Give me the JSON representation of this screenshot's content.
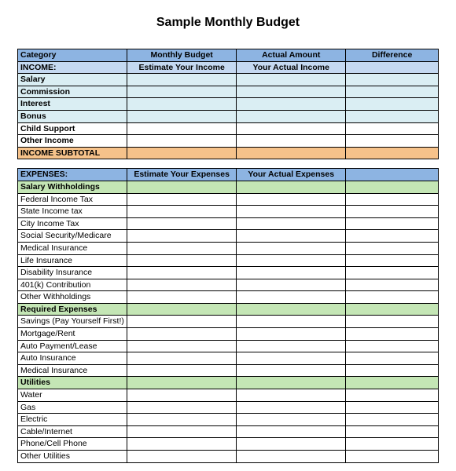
{
  "title": "Sample Monthly Budget",
  "colors": {
    "blue_header": "#8db4e2",
    "blue_subheader": "#c5d9f1",
    "cyan": "#daeef3",
    "orange": "#f6c28a",
    "green": "#c4e6b5",
    "white": "#ffffff",
    "border": "#000000"
  },
  "columns": [
    "Category",
    "Monthly Budget",
    "Actual Amount",
    "Difference"
  ],
  "rows": [
    {
      "type": "header",
      "bg": "blue_header",
      "cells": [
        "Category",
        "Monthly Budget",
        "Actual Amount",
        "Difference"
      ],
      "styles": [
        "hdr",
        "ctr",
        "ctr",
        "ctr"
      ]
    },
    {
      "type": "section",
      "bg": "blue_subheader",
      "cells": [
        "INCOME:",
        "Estimate Your Income",
        "Your Actual Income",
        ""
      ],
      "styles": [
        "hdr",
        "ctr",
        "ctr",
        ""
      ]
    },
    {
      "type": "row",
      "bg": "cyan",
      "cells": [
        "Salary",
        "",
        "",
        ""
      ],
      "styles": [
        "hdr",
        "",
        "",
        ""
      ]
    },
    {
      "type": "row",
      "bg": "cyan",
      "cells": [
        "Commission",
        "",
        "",
        ""
      ],
      "styles": [
        "hdr",
        "",
        "",
        ""
      ]
    },
    {
      "type": "row",
      "bg": "cyan",
      "cells": [
        "Interest",
        "",
        "",
        ""
      ],
      "styles": [
        "hdr",
        "",
        "",
        ""
      ]
    },
    {
      "type": "row",
      "bg": "cyan",
      "cells": [
        "Bonus",
        "",
        "",
        ""
      ],
      "styles": [
        "hdr",
        "",
        "",
        ""
      ]
    },
    {
      "type": "row",
      "bg": "white",
      "cells": [
        "Child Support",
        "",
        "",
        ""
      ],
      "styles": [
        "hdr",
        "",
        "",
        ""
      ]
    },
    {
      "type": "row",
      "bg": "white",
      "cells": [
        "Other Income",
        "",
        "",
        ""
      ],
      "styles": [
        "hdr",
        "",
        "",
        ""
      ]
    },
    {
      "type": "subtotal",
      "bg": "orange",
      "cells": [
        "INCOME SUBTOTAL",
        "",
        "",
        ""
      ],
      "styles": [
        "hdr",
        "",
        "",
        ""
      ]
    },
    {
      "type": "spacer"
    },
    {
      "type": "section",
      "bg": "blue_header",
      "cells": [
        "EXPENSES:",
        "Estimate Your Expenses",
        "Your Actual Expenses",
        ""
      ],
      "styles": [
        "hdr",
        "ctr",
        "ctr",
        ""
      ]
    },
    {
      "type": "subsection",
      "bg": "green",
      "cells": [
        "Salary Withholdings",
        "",
        "",
        ""
      ],
      "styles": [
        "hdr",
        "",
        "",
        ""
      ]
    },
    {
      "type": "row",
      "bg": "white",
      "cells": [
        "Federal Income Tax",
        "",
        "",
        ""
      ],
      "styles": [
        "",
        "",
        "",
        ""
      ]
    },
    {
      "type": "row",
      "bg": "white",
      "cells": [
        "State Income tax",
        "",
        "",
        ""
      ],
      "styles": [
        "",
        "",
        "",
        ""
      ]
    },
    {
      "type": "row",
      "bg": "white",
      "cells": [
        "City Income Tax",
        "",
        "",
        ""
      ],
      "styles": [
        "",
        "",
        "",
        ""
      ]
    },
    {
      "type": "row",
      "bg": "white",
      "cells": [
        "Social Security/Medicare",
        "",
        "",
        ""
      ],
      "styles": [
        "",
        "",
        "",
        ""
      ]
    },
    {
      "type": "row",
      "bg": "white",
      "cells": [
        "Medical Insurance",
        "",
        "",
        ""
      ],
      "styles": [
        "",
        "",
        "",
        ""
      ]
    },
    {
      "type": "row",
      "bg": "white",
      "cells": [
        "Life Insurance",
        "",
        "",
        ""
      ],
      "styles": [
        "",
        "",
        "",
        ""
      ]
    },
    {
      "type": "row",
      "bg": "white",
      "cells": [
        "Disability Insurance",
        "",
        "",
        ""
      ],
      "styles": [
        "",
        "",
        "",
        ""
      ]
    },
    {
      "type": "row",
      "bg": "white",
      "cells": [
        "401(k) Contribution",
        "",
        "",
        ""
      ],
      "styles": [
        "",
        "",
        "",
        ""
      ]
    },
    {
      "type": "row",
      "bg": "white",
      "cells": [
        "Other Withholdings",
        "",
        "",
        ""
      ],
      "styles": [
        "",
        "",
        "",
        ""
      ]
    },
    {
      "type": "subsection",
      "bg": "green",
      "cells": [
        "Required Expenses",
        "",
        "",
        ""
      ],
      "styles": [
        "hdr",
        "",
        "",
        ""
      ]
    },
    {
      "type": "row",
      "bg": "white",
      "cells": [
        "Savings (Pay Yourself First!)",
        "",
        "",
        ""
      ],
      "styles": [
        "",
        "",
        "",
        ""
      ]
    },
    {
      "type": "row",
      "bg": "white",
      "cells": [
        "Mortgage/Rent",
        "",
        "",
        ""
      ],
      "styles": [
        "",
        "",
        "",
        ""
      ]
    },
    {
      "type": "row",
      "bg": "white",
      "cells": [
        "Auto Payment/Lease",
        "",
        "",
        ""
      ],
      "styles": [
        "",
        "",
        "",
        ""
      ]
    },
    {
      "type": "row",
      "bg": "white",
      "cells": [
        "Auto Insurance",
        "",
        "",
        ""
      ],
      "styles": [
        "",
        "",
        "",
        ""
      ]
    },
    {
      "type": "row",
      "bg": "white",
      "cells": [
        "Medical Insurance",
        "",
        "",
        ""
      ],
      "styles": [
        "",
        "",
        "",
        ""
      ]
    },
    {
      "type": "subsection",
      "bg": "green",
      "cells": [
        "Utilities",
        "",
        "",
        ""
      ],
      "styles": [
        "hdr",
        "",
        "",
        ""
      ]
    },
    {
      "type": "row",
      "bg": "white",
      "cells": [
        "Water",
        "",
        "",
        ""
      ],
      "styles": [
        "",
        "",
        "",
        ""
      ]
    },
    {
      "type": "row",
      "bg": "white",
      "cells": [
        "Gas",
        "",
        "",
        ""
      ],
      "styles": [
        "",
        "",
        "",
        ""
      ]
    },
    {
      "type": "row",
      "bg": "white",
      "cells": [
        "Electric",
        "",
        "",
        ""
      ],
      "styles": [
        "",
        "",
        "",
        ""
      ]
    },
    {
      "type": "row",
      "bg": "white",
      "cells": [
        "Cable/Internet",
        "",
        "",
        ""
      ],
      "styles": [
        "",
        "",
        "",
        ""
      ]
    },
    {
      "type": "row",
      "bg": "white",
      "cells": [
        "Phone/Cell Phone",
        "",
        "",
        ""
      ],
      "styles": [
        "",
        "",
        "",
        ""
      ]
    },
    {
      "type": "row",
      "bg": "white",
      "cells": [
        "Other Utilities",
        "",
        "",
        ""
      ],
      "styles": [
        "",
        "",
        "",
        ""
      ]
    }
  ]
}
